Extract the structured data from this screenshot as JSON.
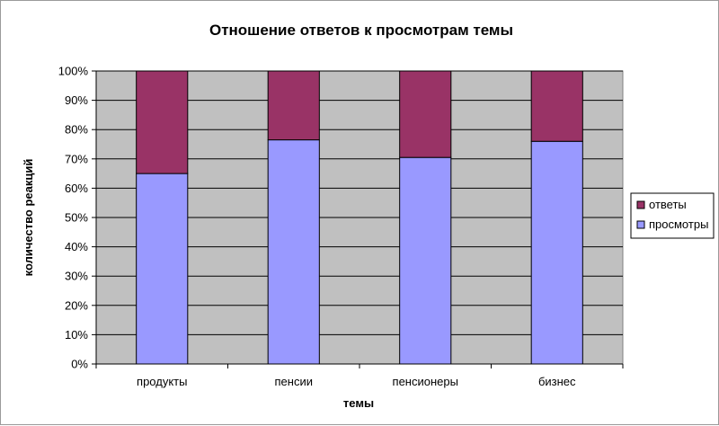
{
  "chart_data": {
    "type": "bar",
    "stacked": true,
    "normalized": true,
    "title": "Отношение ответов к просмотрам темы",
    "xlabel": "темы",
    "ylabel": "количество реакций",
    "categories": [
      "продукты",
      "пенсии",
      "пенсионеры",
      "бизнес"
    ],
    "series": [
      {
        "name": "просмотры",
        "values": [
          65,
          76.5,
          70.5,
          76
        ],
        "color": "#9999ff"
      },
      {
        "name": "ответы",
        "values": [
          35,
          23.5,
          29.5,
          24
        ],
        "color": "#993366"
      }
    ],
    "ylim": [
      0,
      100
    ],
    "yticks": [
      "0%",
      "10%",
      "20%",
      "30%",
      "40%",
      "50%",
      "60%",
      "70%",
      "80%",
      "90%",
      "100%"
    ],
    "grid": true,
    "plot_background": "#c0c0c0",
    "legend_position": "right"
  }
}
